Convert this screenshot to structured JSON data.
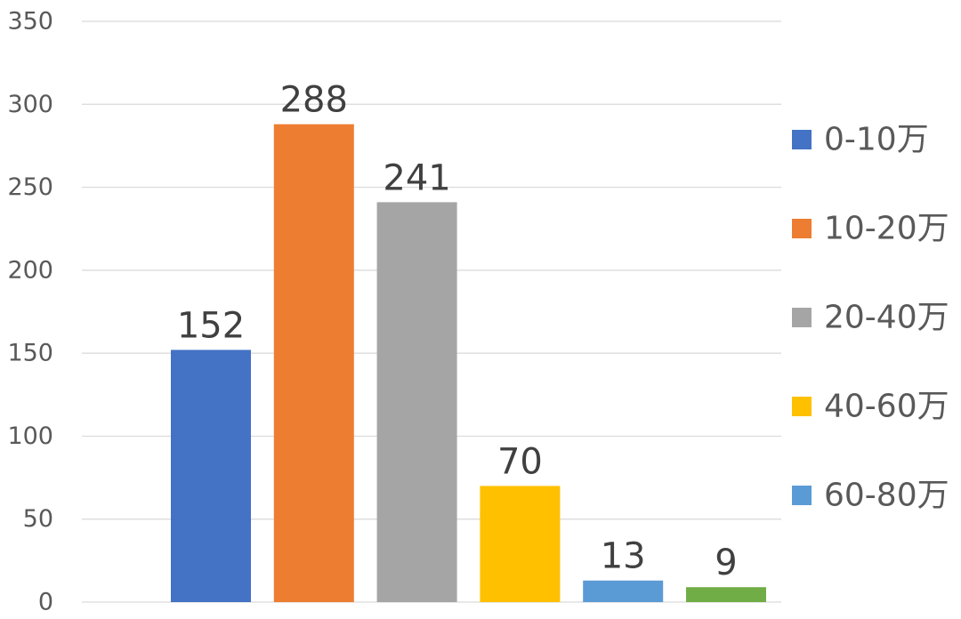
{
  "chart_data": {
    "type": "bar",
    "title": "",
    "xlabel": "",
    "ylabel": "",
    "ylim": [
      0,
      350
    ],
    "yticks": [
      0,
      50,
      100,
      150,
      200,
      250,
      300,
      350
    ],
    "grid": true,
    "legend_position": "right",
    "categories": [
      "0-10万",
      "10-20万",
      "20-40万",
      "40-60万",
      "60-80万",
      ""
    ],
    "values": [
      152,
      288,
      241,
      70,
      13,
      9
    ],
    "colors": [
      "#4472c4",
      "#ed7d31",
      "#a5a5a5",
      "#ffc000",
      "#5b9bd5",
      "#70ad47"
    ],
    "legend": [
      "0-10万",
      "10-20万",
      "20-40万",
      "40-60万",
      "60-80万"
    ],
    "data_labels": [
      "152",
      "288",
      "241",
      "70",
      "13",
      "9"
    ]
  }
}
